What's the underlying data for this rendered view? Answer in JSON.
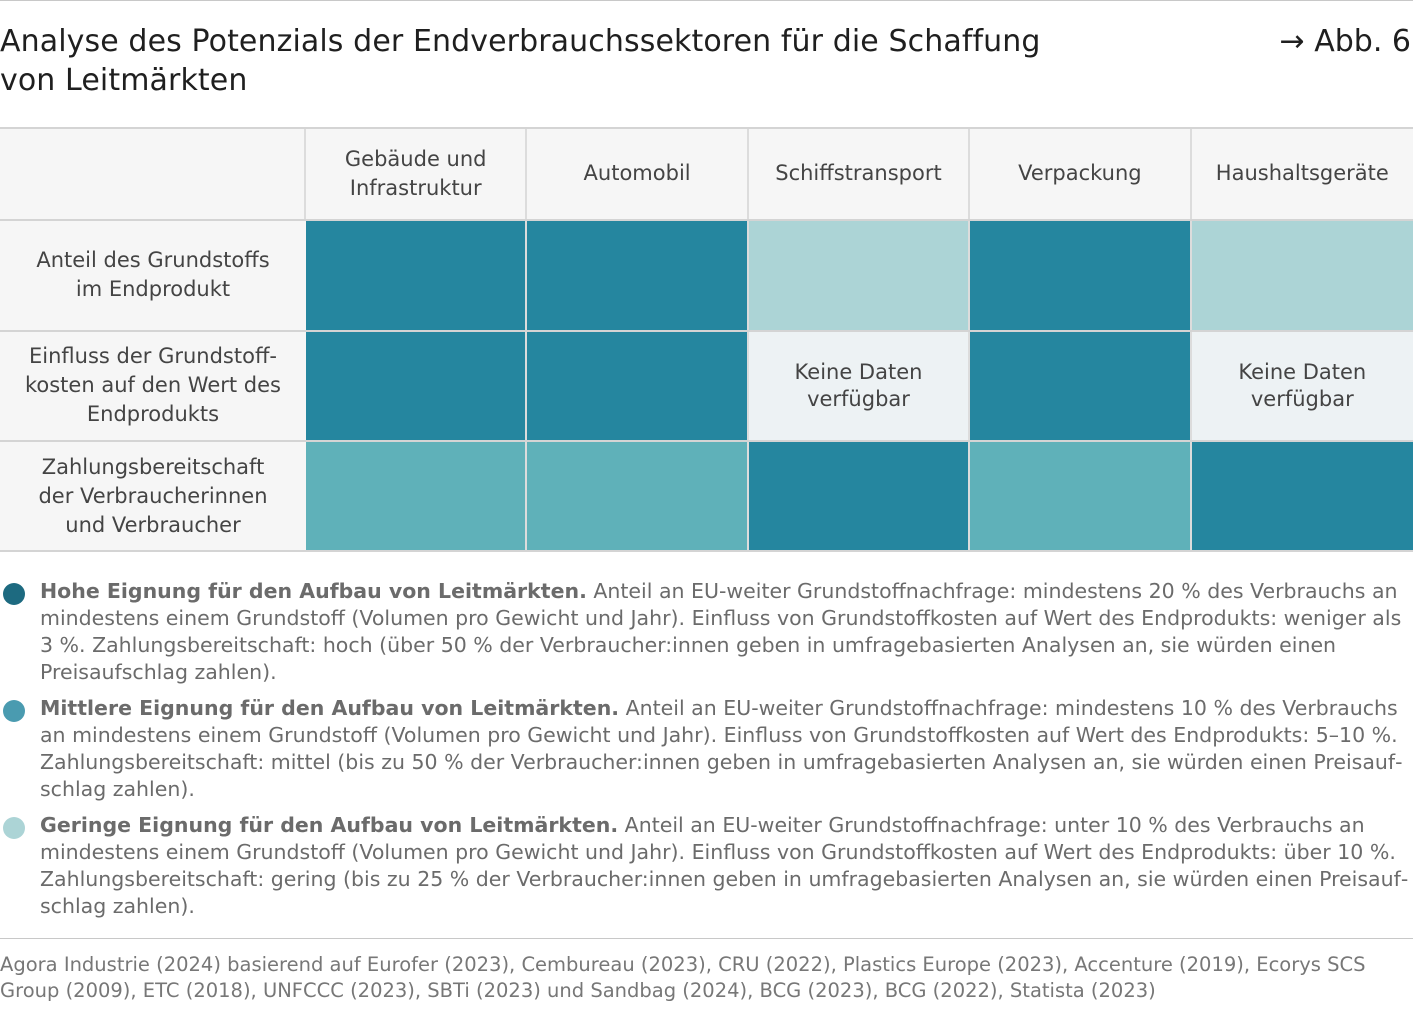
{
  "title": "Analyse des Potenzials der Endverbrauchssektoren für die Schaffung von Leitmärkten",
  "title_line1": "Analyse des Potenzials der Endverbrauchssektoren für die Schaffung",
  "title_line2": "von Leitmärkten",
  "figure_ref": "→ Abb. 6",
  "colors": {
    "high": "#25869f",
    "medium": "#5fb1b9",
    "low": "#acd4d6",
    "no_data": "#edf2f4"
  },
  "chart_data": {
    "type": "heatmap",
    "columns": [
      "Gebäude und Infrastruktur",
      "Automobil",
      "Schiffstransport",
      "Verpackung",
      "Haushaltsgeräte"
    ],
    "rows": [
      {
        "label": "Anteil des Grundstoffs im Endprodukt",
        "values": [
          "high",
          "high",
          "low",
          "high",
          "low"
        ]
      },
      {
        "label": "Einfluss der Grundstoff-kosten auf den Wert des Endprodukts",
        "values": [
          "high",
          "high",
          "no_data",
          "high",
          "no_data"
        ]
      },
      {
        "label": "Zahlungsbereitschaft der Verbraucherinnen und Verbraucher",
        "values": [
          "medium",
          "medium",
          "high",
          "medium",
          "high"
        ]
      }
    ],
    "no_data_label_line1": "Keine Daten",
    "no_data_label_line2": "verfügbar"
  },
  "header_lines": [
    [
      "Gebäude und",
      "Infrastruktur"
    ],
    [
      "Automobil"
    ],
    [
      "Schiffstransport"
    ],
    [
      "Verpackung"
    ],
    [
      "Haushaltsgeräte"
    ]
  ],
  "row_label_lines": [
    [
      "Anteil des Grundstoffs",
      "im Endprodukt"
    ],
    [
      "Einfluss der Grundstoff-",
      "kosten auf den Wert des",
      "Endprodukts"
    ],
    [
      "Zahlungsbereitschaft",
      "der Verbraucherinnen",
      "und Verbraucher"
    ]
  ],
  "legend": [
    {
      "level": "high",
      "bold": "Hohe Eignung für den Aufbau von Leitmärkten.",
      "text": " Anteil an EU-weiter Grundstoffnachfrage: mindestens 20 % des Verbrauchs an mindestens einem Grundstoff (Volumen pro Gewicht und Jahr). Einfluss von Grundstoffkosten auf Wert des Endprodukts: weniger als 3 %. Zahlungsbereitschaft: hoch (über 50 % der Verbraucher:innen geben in umfragebasierten Analysen an, sie würden einen Preisaufschlag zahlen)."
    },
    {
      "level": "medium",
      "bold": "Mittlere Eignung für den Aufbau von Leitmärkten.",
      "text": " Anteil an EU-weiter Grundstoffnachfrage: mindestens 10 % des Verbrauchs an mindestens einem Grundstoff (Volumen pro Gewicht und Jahr). Einfluss von Grundstoffkosten auf Wert des Endprodukts: 5–10 %. Zahlungsbereitschaft: mittel (bis zu 50 % der Verbraucher:innen geben in umfragebasierten Analysen an, sie würden einen Preisauf­schlag zahlen)."
    },
    {
      "level": "low",
      "bold": "Geringe Eignung für den Aufbau von Leitmärkten.",
      "text": " Anteil an EU-weiter Grundstoffnachfrage: unter 10 % des Verbrauchs an min­destens einem Grundstoff (Volumen pro Gewicht und Jahr). Einfluss von Grundstoffkosten auf Wert des Endprodukts: über 10 %. Zahlungsbereitschaft: gering (bis zu 25 % der Verbraucher:innen geben in umfragebasierten Analysen an, sie würden einen Preisauf­schlag zahlen)."
    }
  ],
  "source": "Agora Industrie (2024) basierend auf Eurofer (2023), Cembureau (2023), CRU (2022), Plastics Europe (2023), Accenture (2019), Ecorys SCS Group (2009), ETC (2018), UNFCCC (2023), SBTi (2023) und Sandbag (2024), BCG (2023), BCG (2022), Statista (2023)"
}
